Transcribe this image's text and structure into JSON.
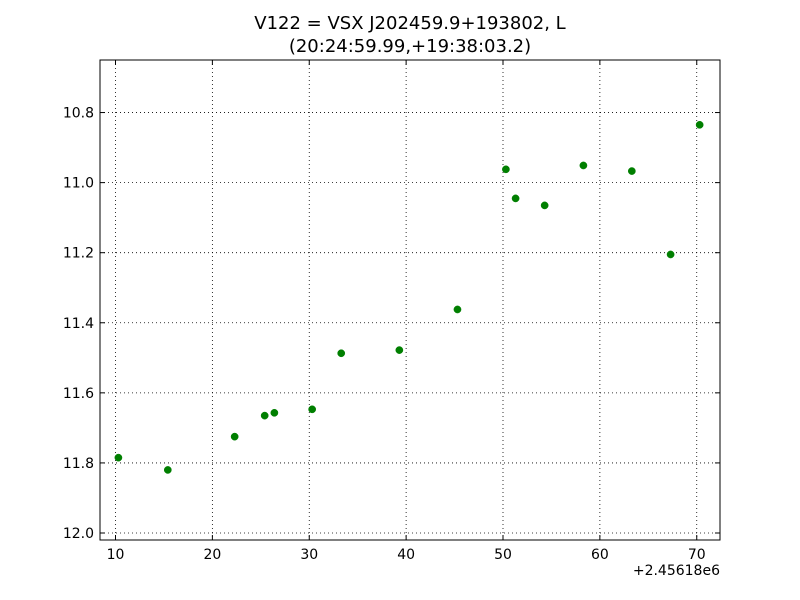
{
  "chart_data": {
    "type": "scatter",
    "title_line1": "V122 = VSX J202459.9+193802, L",
    "title_line2": "(20:24:59.99,+19:38:03.2)",
    "xlabel": "",
    "ylabel": "",
    "x_offset_label": "+2.45618e6",
    "xlim": [
      8.4,
      72.4
    ],
    "ylim": [
      12.02,
      10.65
    ],
    "y_inverted": true,
    "grid": true,
    "marker_color": "#007f00",
    "x_ticks": [
      10,
      20,
      30,
      40,
      50,
      60,
      70
    ],
    "x_tick_labels": [
      "10",
      "20",
      "30",
      "40",
      "50",
      "60",
      "70"
    ],
    "y_ticks": [
      10.8,
      11.0,
      11.2,
      11.4,
      11.6,
      11.8,
      12.0
    ],
    "y_tick_labels": [
      "10.8",
      "11.0",
      "11.2",
      "11.4",
      "11.6",
      "11.8",
      "12.0"
    ],
    "points": [
      {
        "x": 10.3,
        "y": 11.785
      },
      {
        "x": 15.4,
        "y": 11.82
      },
      {
        "x": 22.3,
        "y": 11.725
      },
      {
        "x": 25.4,
        "y": 11.665
      },
      {
        "x": 26.4,
        "y": 11.657
      },
      {
        "x": 30.3,
        "y": 11.647
      },
      {
        "x": 33.3,
        "y": 11.487
      },
      {
        "x": 39.3,
        "y": 11.478
      },
      {
        "x": 45.3,
        "y": 11.362
      },
      {
        "x": 50.3,
        "y": 10.962
      },
      {
        "x": 51.3,
        "y": 11.045
      },
      {
        "x": 54.3,
        "y": 11.065
      },
      {
        "x": 58.3,
        "y": 10.951
      },
      {
        "x": 63.3,
        "y": 10.967
      },
      {
        "x": 67.3,
        "y": 11.205
      },
      {
        "x": 70.3,
        "y": 10.835
      }
    ]
  }
}
